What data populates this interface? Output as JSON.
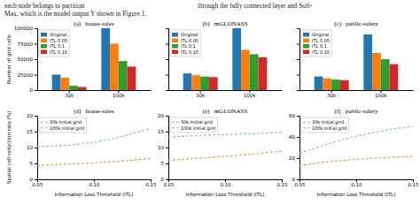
{
  "chart_data": [
    {
      "type": "bar",
      "title": "(a)   house-sales",
      "annotations": [
        "each node belongs to partition",
        "through the fully connected layer and Soft-",
        "Max, which is the model output Y shown in Figure 1."
      ],
      "categories": [
        "30k",
        "100k"
      ],
      "series": [
        {
          "name": "Original",
          "color": "#1f77b4",
          "values": [
            25000,
            100000
          ]
        },
        {
          "name": "ITL 0.05",
          "color": "#ff7f0e",
          "values": [
            20000,
            75000
          ]
        },
        {
          "name": "ITL 0.1",
          "color": "#2ca02c",
          "values": [
            7000,
            47000
          ]
        },
        {
          "name": "ITL 0.15",
          "color": "#d62728",
          "values": [
            5000,
            38000
          ]
        }
      ],
      "ylabel": "Number of grid cells",
      "ylim": [
        0,
        100000
      ],
      "yticks": [
        0,
        25000,
        50000,
        75000,
        100000
      ],
      "grid": false,
      "legend": "upper left"
    },
    {
      "type": "bar",
      "title": "(b)   mGLONASS",
      "categories": [
        "30k",
        "100k"
      ],
      "series": [
        {
          "name": "Original",
          "color": "#1f77b4",
          "values": [
            27000,
            100000
          ]
        },
        {
          "name": "ITL 0.05",
          "color": "#ff7f0e",
          "values": [
            24000,
            65000
          ]
        },
        {
          "name": "ITL 0.1",
          "color": "#2ca02c",
          "values": [
            22000,
            58000
          ]
        },
        {
          "name": "ITL 0.15",
          "color": "#d62728",
          "values": [
            21000,
            53000
          ]
        }
      ],
      "ylim": [
        0,
        100000
      ],
      "yticks": [
        0,
        25000,
        50000,
        75000,
        100000
      ],
      "tick_labels": "x",
      "grid": false,
      "legend": "upper left"
    },
    {
      "type": "bar",
      "title": "(c)   public-safety",
      "categories": [
        "30k",
        "100k"
      ],
      "series": [
        {
          "name": "Original",
          "color": "#1f77b4",
          "values": [
            22000,
            90000
          ]
        },
        {
          "name": "ITL 0.05",
          "color": "#ff7f0e",
          "values": [
            19000,
            60000
          ]
        },
        {
          "name": "ITL 0.1",
          "color": "#2ca02c",
          "values": [
            17000,
            50000
          ]
        },
        {
          "name": "ITL 0.15",
          "color": "#d62728",
          "values": [
            16000,
            42000
          ]
        }
      ],
      "ylim": [
        0,
        100000
      ],
      "yticks": [
        0,
        25000,
        50000,
        75000,
        100000
      ],
      "tick_labels": "x",
      "grid": false,
      "legend": "upper left"
    },
    {
      "type": "line",
      "title": "(d)   house-sales",
      "x": [
        0.05,
        0.06,
        0.07,
        0.08,
        0.09,
        0.1,
        0.11,
        0.12,
        0.13,
        0.14,
        0.15
      ],
      "series": [
        {
          "name": "30k Initial grid",
          "color": "#d4a850",
          "line_style": "dashed",
          "values": [
            4.3,
            4.5,
            4.7,
            4.8,
            5.0,
            5.2,
            5.4,
            5.6,
            5.9,
            6.2,
            6.6
          ]
        },
        {
          "name": "100k Initial grid",
          "color": "#90c990",
          "line_style": "dashed",
          "values": [
            10.3,
            10.4,
            10.6,
            10.8,
            11.2,
            11.7,
            12.3,
            13.0,
            14.0,
            15.0,
            16.0
          ]
        }
      ],
      "xlabel": "Information Loss Threshold (ITL)",
      "ylabel": "Spatial cell reduction rate (%)",
      "xlim": [
        0.05,
        0.15
      ],
      "xticks": [
        0.05,
        {
          "value": 0.1,
          "label": "0.10"
        },
        0.15
      ],
      "ylim": [
        0,
        20
      ],
      "yticks": [
        0,
        5,
        10,
        15,
        20
      ],
      "grid": false,
      "legend": "upper left"
    },
    {
      "type": "line",
      "title": "(e)   mGLONASS",
      "x": [
        0.05,
        0.06,
        0.07,
        0.08,
        0.09,
        0.1,
        0.11,
        0.12,
        0.13,
        0.14,
        0.15
      ],
      "series": [
        {
          "name": "30k Initial grid",
          "color": "#d4a850",
          "line_style": "dashed",
          "values": [
            6.0,
            6.2,
            6.5,
            6.7,
            7.0,
            7.2,
            7.5,
            7.8,
            8.1,
            8.5,
            8.8
          ]
        },
        {
          "name": "100k Initial grid",
          "color": "#90c990",
          "line_style": "dashed",
          "values": [
            13.2,
            13.5,
            13.7,
            13.9,
            14.0,
            14.1,
            14.2,
            14.3,
            14.4,
            14.6,
            14.7
          ]
        }
      ],
      "xlabel": "Information Loss Threshold (ITL)",
      "xlim": [
        0.05,
        0.15
      ],
      "xticks": [
        0.05,
        {
          "value": 0.1,
          "label": "0.10"
        },
        0.15
      ],
      "ylim": [
        0,
        20
      ],
      "yticks": [
        0,
        5,
        10,
        15,
        20
      ],
      "grid": false,
      "legend": "upper left"
    },
    {
      "type": "line",
      "title": "(f)   public-safety",
      "x": [
        0.05,
        0.06,
        0.07,
        0.08,
        0.09,
        0.1,
        0.11,
        0.12,
        0.13,
        0.14,
        0.15
      ],
      "series": [
        {
          "name": "30k Initial grid",
          "color": "#d4a850",
          "line_style": "dashed",
          "values": [
            13.0,
            14.5,
            16.0,
            17.0,
            18.0,
            18.8,
            19.5,
            20.2,
            20.7,
            21.2,
            21.5
          ]
        },
        {
          "name": "100k Initial grid",
          "color": "#90c990",
          "line_style": "dashed",
          "values": [
            25.0,
            28.0,
            31.5,
            35.0,
            38.0,
            40.5,
            43.0,
            45.0,
            47.0,
            48.5,
            50.0
          ]
        }
      ],
      "xlabel": "Information Loss Threshold (ITL)",
      "xlim": [
        0.05,
        0.15
      ],
      "xticks": [
        0.05,
        {
          "value": 0.1,
          "label": "0.10"
        },
        0.15
      ],
      "ylim": [
        0,
        60
      ],
      "yticks": [
        0,
        20,
        40,
        60
      ],
      "grid": false,
      "legend": "upper left"
    }
  ]
}
